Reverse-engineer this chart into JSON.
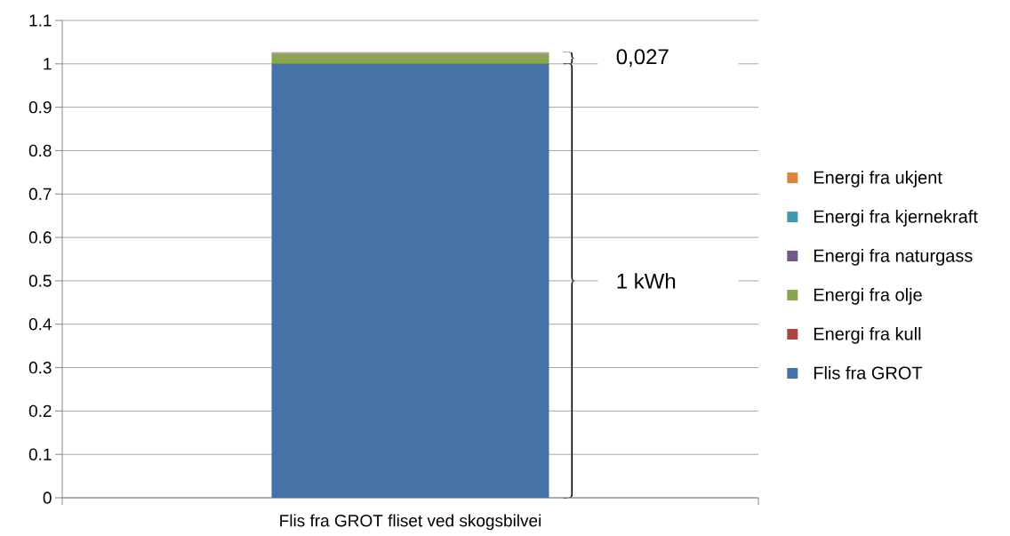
{
  "chart_data": {
    "type": "bar",
    "stacked": true,
    "categories": [
      "Flis fra GROT fliset ved skogsbilvei"
    ],
    "series": [
      {
        "name": "Flis fra GROT",
        "color": "#4572a7",
        "values": [
          1.0
        ]
      },
      {
        "name": "Energi fra kull",
        "color": "#aa4643",
        "values": [
          0.001
        ]
      },
      {
        "name": "Energi fra olje",
        "color": "#89a54e",
        "values": [
          0.022
        ]
      },
      {
        "name": "Energi fra naturgass",
        "color": "#71588f",
        "values": [
          0.001
        ]
      },
      {
        "name": "Energi fra kjernekraft",
        "color": "#4198af",
        "values": [
          0.001
        ]
      },
      {
        "name": "Energi fra ukjent",
        "color": "#db843d",
        "values": [
          0.002
        ]
      }
    ],
    "ylim": [
      0,
      1.1
    ],
    "yticks": [
      0,
      0.1,
      0.2,
      0.3,
      0.4,
      0.5,
      0.6,
      0.7,
      0.8,
      0.9,
      1,
      1.1
    ],
    "grid": "y",
    "legend": "right",
    "annotations": [
      "0,027",
      "1 kWh"
    ]
  }
}
